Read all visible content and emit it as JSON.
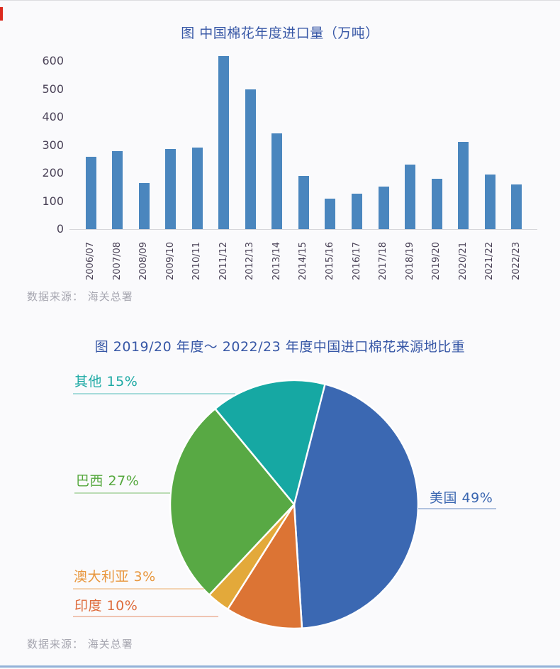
{
  "chart_data": [
    {
      "type": "bar",
      "title": "图 中国棉花年度进口量（万吨）",
      "xlabel": "",
      "ylabel": "",
      "ylim": [
        0,
        600
      ],
      "yticks": [
        0,
        100,
        200,
        300,
        400,
        500,
        600
      ],
      "grid": false,
      "bar_color": "#4a86be",
      "categories": [
        "2006/07",
        "2007/08",
        "2008/09",
        "2009/10",
        "2010/11",
        "2011/12",
        "2012/13",
        "2013/14",
        "2014/15",
        "2015/16",
        "2016/17",
        "2017/18",
        "2018/19",
        "2019/20",
        "2020/21",
        "2021/22",
        "2022/23"
      ],
      "values": [
        258,
        278,
        165,
        285,
        292,
        618,
        500,
        343,
        190,
        108,
        127,
        152,
        230,
        180,
        312,
        196,
        160
      ],
      "source": "数据来源： 海关总署"
    },
    {
      "type": "pie",
      "title": "图 2019/20 年度～ 2022/23 年度中国进口棉花来源地比重",
      "legend_position": "callout-labels",
      "slices": [
        {
          "label": "美国",
          "value": 49,
          "color": "#3b68b2",
          "label_color": "#3a66b0"
        },
        {
          "label": "印度",
          "value": 10,
          "color": "#dc7434",
          "label_color": "#de6b3b"
        },
        {
          "label": "澳大利亚",
          "value": 3,
          "color": "#e3a93a",
          "label_color": "#e8963c"
        },
        {
          "label": "巴西",
          "value": 27,
          "color": "#58a944",
          "label_color": "#55a83e"
        },
        {
          "label": "其他",
          "value": 15,
          "color": "#16a8a3",
          "label_color": "#1ca9a4"
        }
      ],
      "source": "数据来源： 海关总署"
    }
  ],
  "accent_color": "#dc2a1e",
  "title_color": "#3757a6",
  "axis_label_color": "#4b4358",
  "source_color": "#a6a6b0",
  "bottom_rule_color": "#93b2d8"
}
